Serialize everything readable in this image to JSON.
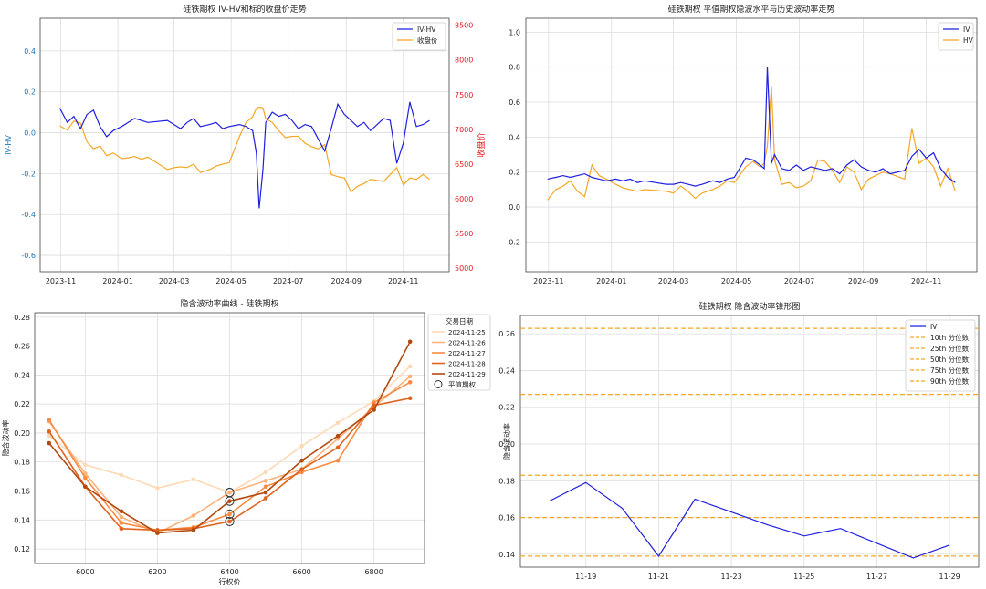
{
  "chart_data": [
    {
      "type": "line",
      "title": "硅铁期权 IV-HV和标的收盘价走势",
      "ylabel": "IV-HV",
      "y2label": "收盘价",
      "ylim": [
        -0.68,
        0.56
      ],
      "y2lim": [
        4950,
        8600
      ],
      "yticks": [
        "-0.6",
        "-0.4",
        "-0.2",
        "0.0",
        "0.2",
        "0.4"
      ],
      "y2ticks": [
        "5000",
        "5500",
        "6000",
        "6500",
        "7000",
        "7500",
        "8000",
        "8500"
      ],
      "xticks": [
        "2023-11",
        "2024-01",
        "2024-03",
        "2024-05",
        "2024-07",
        "2024-09",
        "2024-11"
      ],
      "legend": [
        "IV-HV",
        "收盘价"
      ],
      "legend_position": "top-right",
      "grid": true,
      "colors": {
        "iv_hv": "#1f1fe0",
        "close": "#f5a623",
        "y2axis": "#e02020",
        "y1axis": "#1f77b4"
      },
      "series": [
        {
          "name": "IV-HV",
          "x": [
            "2023-10-31",
            "2023-11-08",
            "2023-11-15",
            "2023-11-22",
            "2023-11-29",
            "2023-12-06",
            "2023-12-13",
            "2023-12-20",
            "2023-12-27",
            "2024-01-05",
            "2024-01-12",
            "2024-01-19",
            "2024-01-26",
            "2024-02-02",
            "2024-02-23",
            "2024-03-01",
            "2024-03-08",
            "2024-03-15",
            "2024-03-22",
            "2024-03-29",
            "2024-04-08",
            "2024-04-15",
            "2024-04-22",
            "2024-04-29",
            "2024-05-10",
            "2024-05-17",
            "2024-05-24",
            "2024-05-28",
            "2024-05-31",
            "2024-06-04",
            "2024-06-07",
            "2024-06-14",
            "2024-06-21",
            "2024-06-28",
            "2024-07-05",
            "2024-07-12",
            "2024-07-19",
            "2024-07-26",
            "2024-08-02",
            "2024-08-09",
            "2024-08-16",
            "2024-08-23",
            "2024-08-30",
            "2024-09-06",
            "2024-09-13",
            "2024-09-20",
            "2024-09-27",
            "2024-10-11",
            "2024-10-18",
            "2024-10-25",
            "2024-11-01",
            "2024-11-08",
            "2024-11-15",
            "2024-11-22",
            "2024-11-29"
          ],
          "y": [
            0.12,
            0.05,
            0.08,
            0.02,
            0.09,
            0.11,
            0.03,
            -0.02,
            0.01,
            0.03,
            0.05,
            0.07,
            0.06,
            0.05,
            0.06,
            0.04,
            0.02,
            0.05,
            0.07,
            0.03,
            0.04,
            0.05,
            0.02,
            0.03,
            0.04,
            0.03,
            0.01,
            -0.1,
            -0.37,
            -0.18,
            0.05,
            0.1,
            0.08,
            0.09,
            0.06,
            0.02,
            0.04,
            0.03,
            -0.03,
            -0.09,
            0.02,
            0.14,
            0.09,
            0.06,
            0.03,
            0.05,
            0.01,
            0.07,
            0.06,
            -0.15,
            -0.05,
            0.15,
            0.03,
            0.04,
            0.06
          ]
        },
        {
          "name": "收盘价",
          "x": [
            "2023-10-31",
            "2023-11-08",
            "2023-11-15",
            "2023-11-22",
            "2023-11-29",
            "2023-12-06",
            "2023-12-13",
            "2023-12-20",
            "2023-12-27",
            "2024-01-05",
            "2024-01-12",
            "2024-01-19",
            "2024-01-26",
            "2024-02-02",
            "2024-02-23",
            "2024-03-01",
            "2024-03-08",
            "2024-03-15",
            "2024-03-22",
            "2024-03-29",
            "2024-04-08",
            "2024-04-15",
            "2024-04-22",
            "2024-04-29",
            "2024-05-10",
            "2024-05-17",
            "2024-05-24",
            "2024-05-28",
            "2024-05-31",
            "2024-06-04",
            "2024-06-07",
            "2024-06-14",
            "2024-06-21",
            "2024-06-28",
            "2024-07-05",
            "2024-07-12",
            "2024-07-19",
            "2024-07-26",
            "2024-08-02",
            "2024-08-09",
            "2024-08-16",
            "2024-08-23",
            "2024-08-30",
            "2024-09-06",
            "2024-09-13",
            "2024-09-20",
            "2024-09-27",
            "2024-10-11",
            "2024-10-18",
            "2024-10-25",
            "2024-11-01",
            "2024-11-08",
            "2024-11-15",
            "2024-11-22",
            "2024-11-29"
          ],
          "y": [
            7050,
            6990,
            7120,
            7090,
            6820,
            6720,
            6760,
            6620,
            6660,
            6580,
            6590,
            6610,
            6570,
            6600,
            6420,
            6450,
            6460,
            6450,
            6500,
            6380,
            6420,
            6470,
            6500,
            6520,
            6900,
            7100,
            7180,
            7300,
            7320,
            7310,
            7150,
            7100,
            6980,
            6880,
            6900,
            6900,
            6800,
            6750,
            6720,
            6780,
            6350,
            6320,
            6300,
            6100,
            6180,
            6220,
            6280,
            6250,
            6350,
            6450,
            6200,
            6300,
            6280,
            6350,
            6280
          ]
        }
      ]
    },
    {
      "type": "line",
      "title": "硅铁期权 平值期权隐波水平与历史波动率走势",
      "ylim": [
        -0.37,
        1.08
      ],
      "yticks": [
        "-0.2",
        "0.0",
        "0.2",
        "0.4",
        "0.6",
        "0.8",
        "1.0"
      ],
      "xticks": [
        "2023-11",
        "2024-01",
        "2024-03",
        "2024-05",
        "2024-07",
        "2024-09",
        "2024-11"
      ],
      "legend": [
        "IV",
        "HV"
      ],
      "legend_position": "top-right",
      "grid": true,
      "colors": {
        "iv": "#1f1fe0",
        "hv": "#f5a623"
      },
      "series": [
        {
          "name": "IV",
          "x": [
            "2023-10-31",
            "2023-11-08",
            "2023-11-15",
            "2023-11-22",
            "2023-11-29",
            "2023-12-06",
            "2023-12-13",
            "2023-12-20",
            "2023-12-27",
            "2024-01-05",
            "2024-01-12",
            "2024-01-19",
            "2024-01-26",
            "2024-02-02",
            "2024-02-23",
            "2024-03-01",
            "2024-03-08",
            "2024-03-15",
            "2024-03-22",
            "2024-03-29",
            "2024-04-08",
            "2024-04-15",
            "2024-04-22",
            "2024-04-29",
            "2024-05-10",
            "2024-05-17",
            "2024-05-24",
            "2024-05-28",
            "2024-05-31",
            "2024-06-04",
            "2024-06-07",
            "2024-06-14",
            "2024-06-21",
            "2024-06-28",
            "2024-07-05",
            "2024-07-12",
            "2024-07-19",
            "2024-07-26",
            "2024-08-02",
            "2024-08-09",
            "2024-08-16",
            "2024-08-23",
            "2024-08-30",
            "2024-09-06",
            "2024-09-13",
            "2024-09-20",
            "2024-09-27",
            "2024-10-11",
            "2024-10-18",
            "2024-10-25",
            "2024-11-01",
            "2024-11-08",
            "2024-11-15",
            "2024-11-22",
            "2024-11-29"
          ],
          "y": [
            0.16,
            0.17,
            0.18,
            0.17,
            0.18,
            0.19,
            0.17,
            0.16,
            0.15,
            0.16,
            0.15,
            0.16,
            0.14,
            0.15,
            0.13,
            0.13,
            0.14,
            0.13,
            0.12,
            0.13,
            0.15,
            0.14,
            0.16,
            0.17,
            0.28,
            0.27,
            0.24,
            0.22,
            0.8,
            0.25,
            0.3,
            0.22,
            0.21,
            0.24,
            0.21,
            0.23,
            0.22,
            0.21,
            0.22,
            0.19,
            0.24,
            0.27,
            0.23,
            0.21,
            0.2,
            0.22,
            0.19,
            0.21,
            0.29,
            0.33,
            0.28,
            0.31,
            0.22,
            0.17,
            0.14
          ]
        },
        {
          "name": "HV",
          "x": [
            "2023-10-31",
            "2023-11-08",
            "2023-11-15",
            "2023-11-22",
            "2023-11-29",
            "2023-12-06",
            "2023-12-13",
            "2023-12-20",
            "2023-12-27",
            "2024-01-05",
            "2024-01-12",
            "2024-01-19",
            "2024-01-26",
            "2024-02-02",
            "2024-02-23",
            "2024-03-01",
            "2024-03-08",
            "2024-03-15",
            "2024-03-22",
            "2024-03-29",
            "2024-04-08",
            "2024-04-15",
            "2024-04-22",
            "2024-04-29",
            "2024-05-10",
            "2024-05-17",
            "2024-05-24",
            "2024-05-28",
            "2024-05-31",
            "2024-06-04",
            "2024-06-07",
            "2024-06-14",
            "2024-06-21",
            "2024-06-28",
            "2024-07-05",
            "2024-07-12",
            "2024-07-19",
            "2024-07-26",
            "2024-08-02",
            "2024-08-09",
            "2024-08-16",
            "2024-08-23",
            "2024-08-30",
            "2024-09-06",
            "2024-09-13",
            "2024-09-20",
            "2024-09-27",
            "2024-10-11",
            "2024-10-18",
            "2024-10-25",
            "2024-11-01",
            "2024-11-08",
            "2024-11-15",
            "2024-11-22",
            "2024-11-29"
          ],
          "y": [
            0.04,
            0.1,
            0.12,
            0.15,
            0.09,
            0.06,
            0.24,
            0.18,
            0.16,
            0.13,
            0.11,
            0.1,
            0.09,
            0.1,
            0.09,
            0.08,
            0.12,
            0.09,
            0.05,
            0.08,
            0.1,
            0.12,
            0.15,
            0.14,
            0.23,
            0.26,
            0.23,
            0.25,
            0.35,
            0.69,
            0.27,
            0.13,
            0.14,
            0.11,
            0.12,
            0.15,
            0.27,
            0.26,
            0.21,
            0.14,
            0.23,
            0.2,
            0.1,
            0.16,
            0.18,
            0.2,
            0.19,
            0.16,
            0.45,
            0.25,
            0.28,
            0.23,
            0.12,
            0.22,
            0.09
          ]
        }
      ]
    },
    {
      "type": "line",
      "title": "隐含波动率曲线 - 硅铁期权",
      "xlabel": "行权价",
      "ylabel": "隐含波动率",
      "ylim": [
        0.11,
        0.283
      ],
      "xlim": [
        5860,
        6940
      ],
      "yticks": [
        "0.12",
        "0.14",
        "0.16",
        "0.18",
        "0.20",
        "0.22",
        "0.24",
        "0.26",
        "0.28"
      ],
      "xticks": [
        "6000",
        "6200",
        "6400",
        "6600",
        "6800"
      ],
      "legend_title": "交易日期",
      "legend_position": "outside-right",
      "atm_label": "平值期权",
      "atm_strike": 6400,
      "grid": true,
      "x": [
        5900,
        6000,
        6100,
        6200,
        6300,
        6400,
        6500,
        6600,
        6700,
        6800,
        6900
      ],
      "series": [
        {
          "name": "2024-11-25",
          "color": "#fdd9b5",
          "y": [
            0.198,
            0.178,
            0.171,
            0.162,
            0.168,
            0.159,
            0.173,
            0.191,
            0.207,
            0.222,
            0.246
          ]
        },
        {
          "name": "2024-11-26",
          "color": "#fdb27a",
          "y": [
            0.208,
            0.172,
            0.142,
            0.131,
            0.143,
            0.159,
            0.167,
            0.175,
            0.196,
            0.218,
            0.239
          ]
        },
        {
          "name": "2024-11-27",
          "color": "#f98c43",
          "y": [
            0.209,
            0.169,
            0.138,
            0.133,
            0.135,
            0.144,
            0.163,
            0.173,
            0.181,
            0.221,
            0.235
          ]
        },
        {
          "name": "2024-11-28",
          "color": "#e0641e",
          "y": [
            0.201,
            0.163,
            0.134,
            0.133,
            0.134,
            0.139,
            0.155,
            0.175,
            0.19,
            0.219,
            0.224
          ]
        },
        {
          "name": "2024-11-29",
          "color": "#b04a10",
          "y": [
            0.193,
            0.163,
            0.146,
            0.131,
            0.133,
            0.153,
            0.159,
            0.181,
            0.198,
            0.216,
            0.263
          ]
        }
      ]
    },
    {
      "type": "line",
      "title": "硅铁期权 隐含波动率锥形图",
      "ylabel": "隐含波动率",
      "ylim": [
        0.133,
        0.27
      ],
      "yticks": [
        "0.14",
        "0.16",
        "0.18",
        "0.20",
        "0.22",
        "0.24",
        "0.26"
      ],
      "xticks": [
        "11-19",
        "11-21",
        "11-23",
        "11-25",
        "11-27",
        "11-29"
      ],
      "legend_position": "top-right",
      "grid": true,
      "colors": {
        "iv": "#1f1fe0",
        "percentile": "#f5a623"
      },
      "series": [
        {
          "name": "IV",
          "x": [
            0,
            1,
            2,
            3,
            4,
            5,
            6,
            7,
            8,
            9,
            10,
            11
          ],
          "y": [
            0.169,
            0.179,
            0.165,
            0.139,
            0.17,
            0.163,
            0.156,
            0.15,
            0.154,
            0.146,
            0.138,
            0.145
          ]
        }
      ],
      "percentiles": [
        {
          "name": "10th 分位数",
          "value": 0.139
        },
        {
          "name": "25th 分位数",
          "value": 0.16
        },
        {
          "name": "50th 分位数",
          "value": 0.183
        },
        {
          "name": "75th 分位数",
          "value": 0.227
        },
        {
          "name": "90th 分位数",
          "value": 0.263
        }
      ]
    }
  ]
}
